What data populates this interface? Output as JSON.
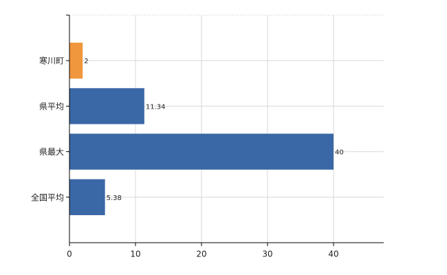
{
  "chart_data": {
    "type": "hbar",
    "categories": [
      "寒川町",
      "県平均",
      "県最大",
      "全国平均"
    ],
    "values": [
      2,
      11.34,
      40,
      5.38
    ],
    "colors": [
      "#f0963c",
      "#3a68a6",
      "#3a68a6",
      "#3a68a6"
    ],
    "xlim": [
      0,
      47.6
    ],
    "xticks": [
      0,
      10,
      20,
      30,
      40
    ],
    "grid": true
  }
}
